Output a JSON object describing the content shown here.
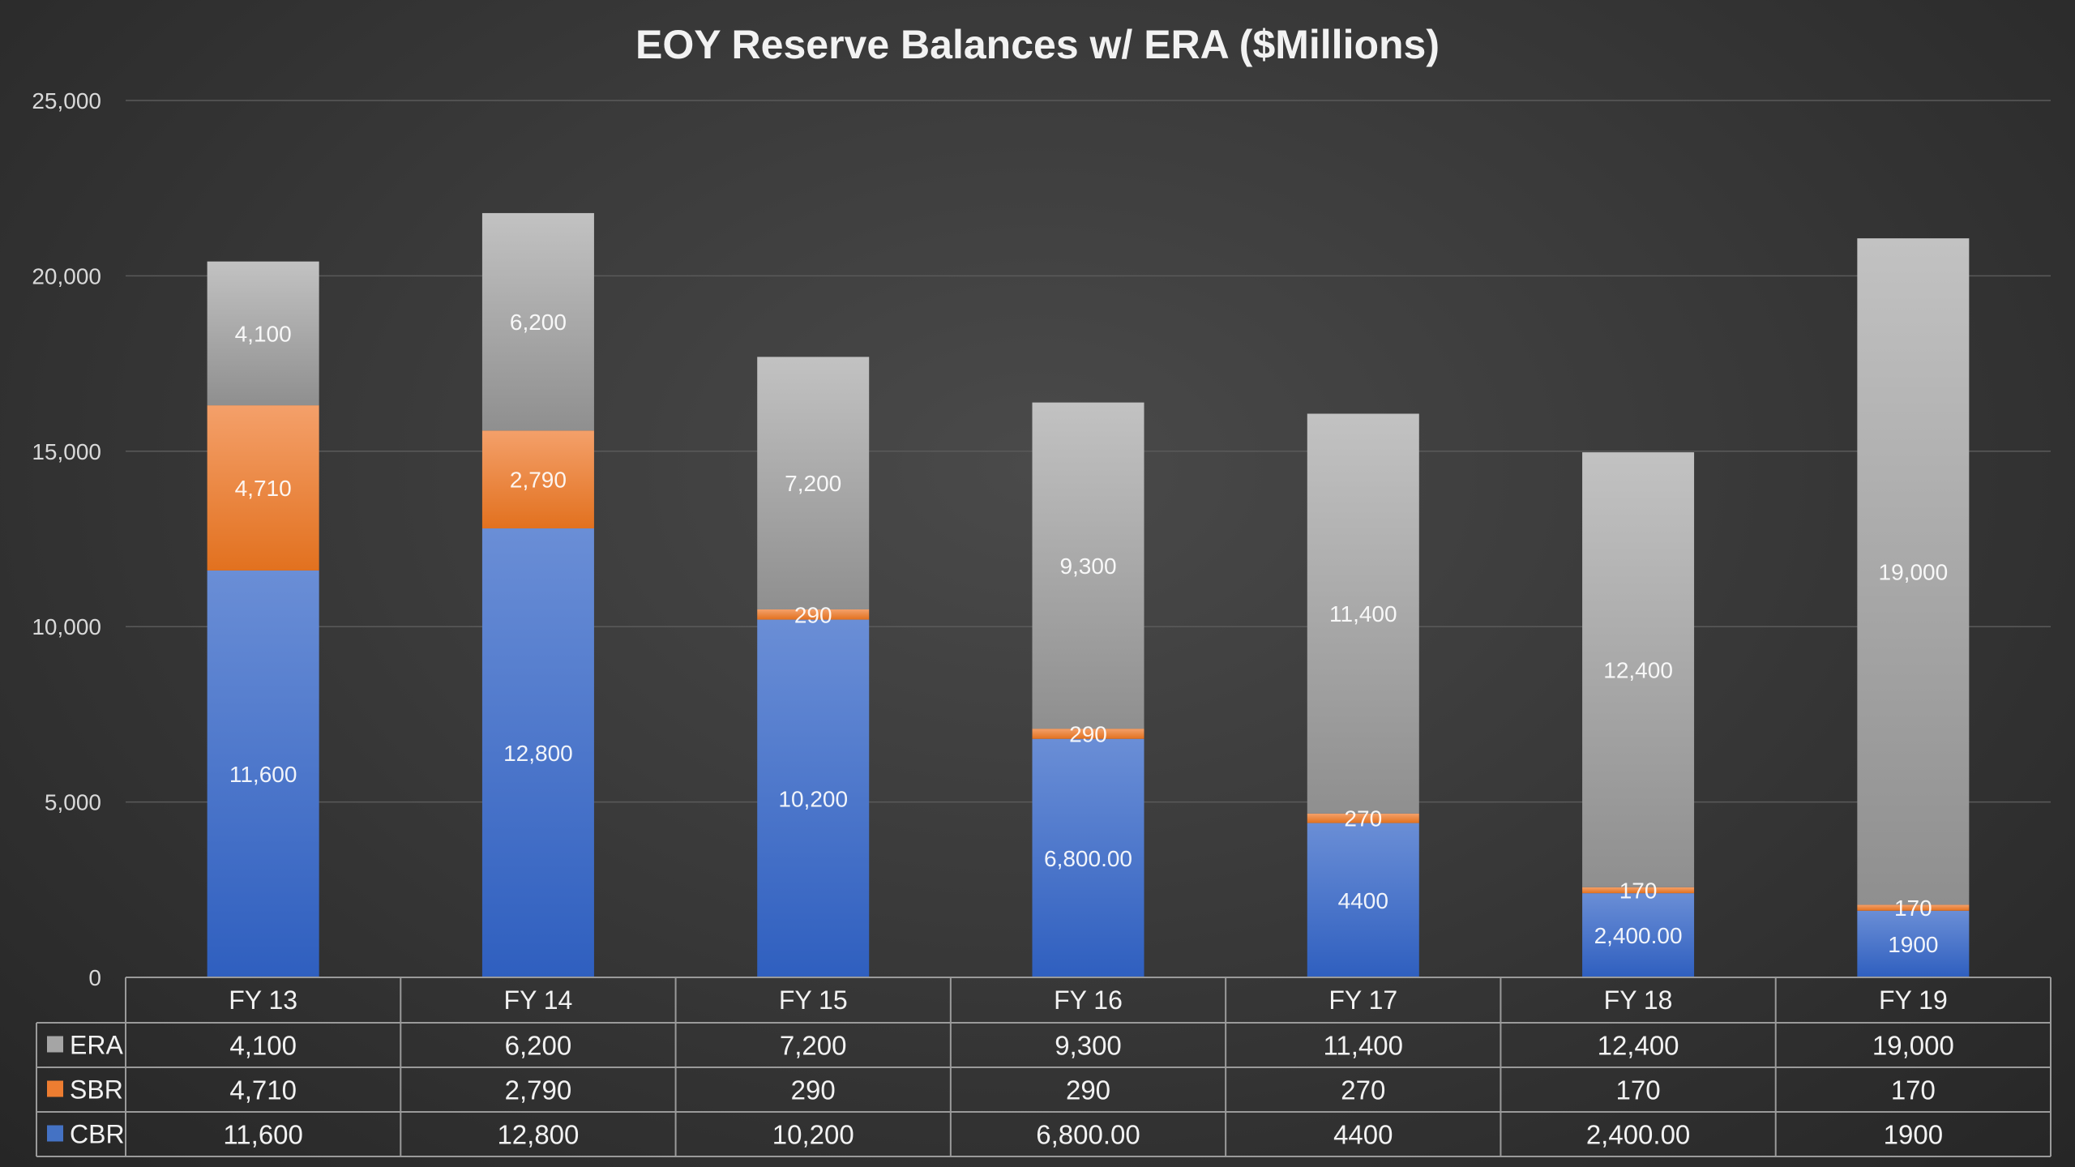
{
  "chart_data": {
    "type": "bar",
    "stacked": true,
    "title": "EOY Reserve Balances w/ ERA ($Millions)",
    "xlabel": "",
    "ylabel": "",
    "ylim": [
      0,
      25000
    ],
    "yticks": [
      0,
      5000,
      10000,
      15000,
      20000,
      25000
    ],
    "ytick_labels": [
      "0",
      "5,000",
      "10,000",
      "15,000",
      "20,000",
      "25,000"
    ],
    "grid": true,
    "legend": "data-table-left",
    "categories": [
      "FY 13",
      "FY 14",
      "FY 15",
      "FY 16",
      "FY 17",
      "FY 18",
      "FY 19"
    ],
    "series": [
      {
        "name": "CBR",
        "color": "#4472c4",
        "values": [
          11600,
          12800,
          10200,
          6800,
          4400,
          2400,
          1900
        ],
        "labels": [
          "11,600",
          "12,800",
          "10,200",
          "6,800.00",
          "4400",
          "2,400.00",
          "1900"
        ]
      },
      {
        "name": "SBR",
        "color": "#ed7d31",
        "values": [
          4710,
          2790,
          290,
          290,
          270,
          170,
          170
        ],
        "labels": [
          "4,710",
          "2,790",
          "290",
          "290",
          "270",
          "170",
          "170"
        ]
      },
      {
        "name": "ERA",
        "color": "#a5a5a5",
        "values": [
          4100,
          6200,
          7200,
          9300,
          11400,
          12400,
          19000
        ],
        "labels": [
          "4,100",
          "6,200",
          "7,200",
          "9,300",
          "11,400",
          "12,400",
          "19,000"
        ]
      }
    ],
    "table_row_order": [
      "ERA",
      "SBR",
      "CBR"
    ]
  }
}
